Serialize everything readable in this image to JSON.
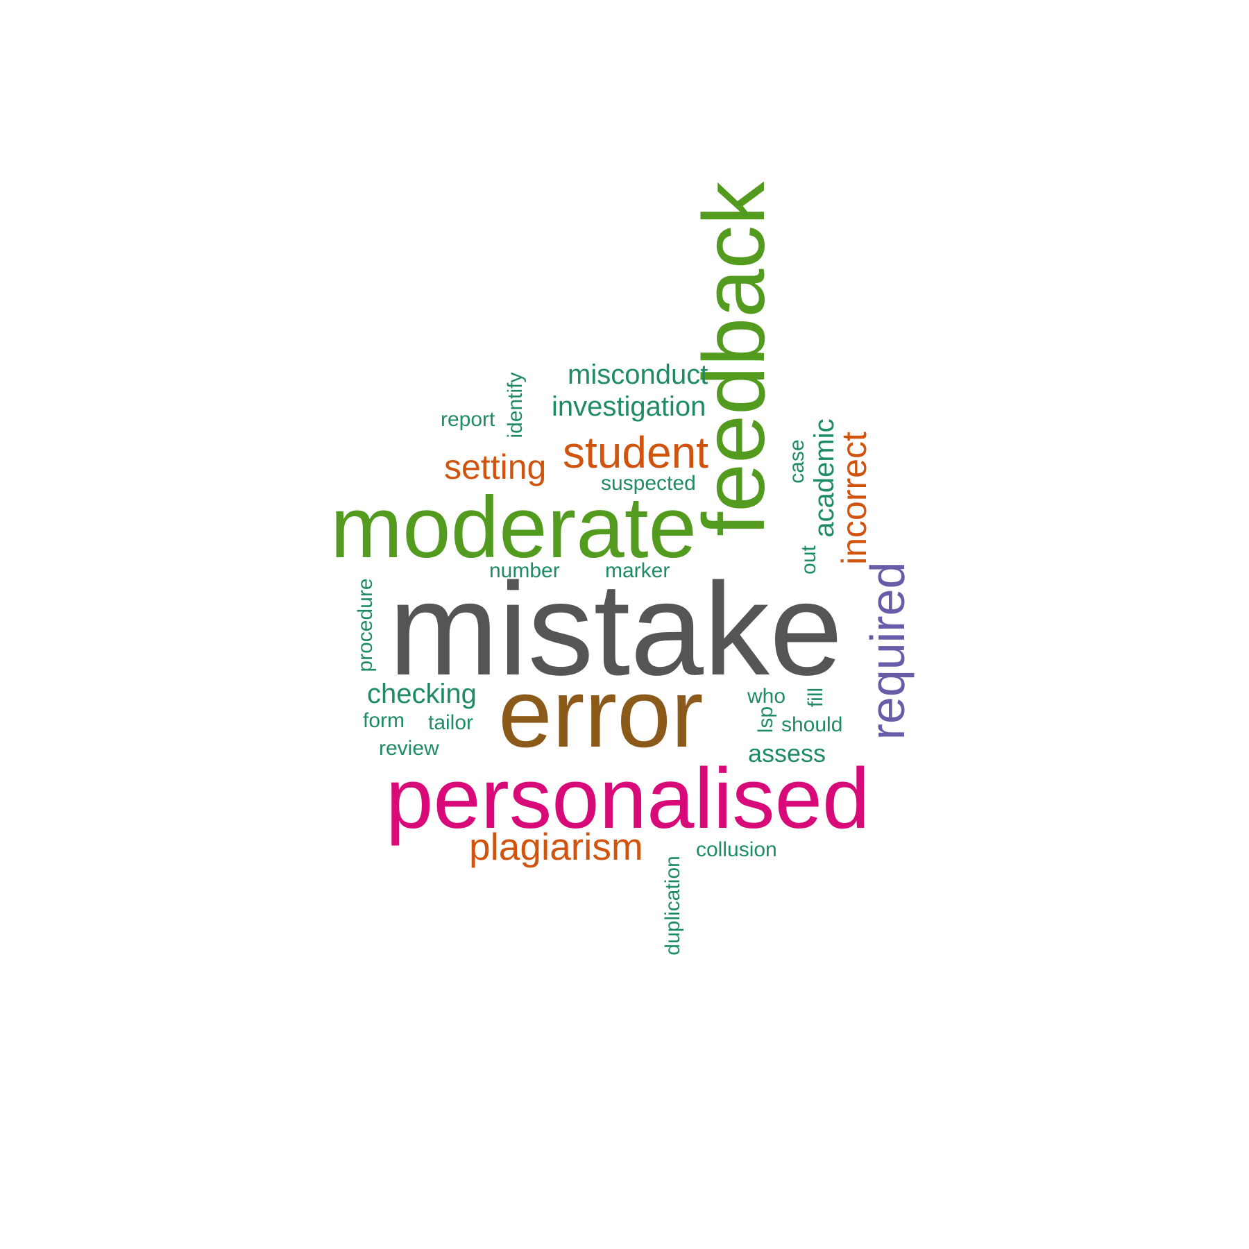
{
  "words": [
    {
      "text": "mistake",
      "color": "#555555",
      "weight": 1.0
    },
    {
      "text": "error",
      "color": "#8B5A1B",
      "weight": 0.74
    },
    {
      "text": "feedback",
      "color": "#539B1E",
      "weight": 0.66
    },
    {
      "text": "moderate",
      "color": "#539B1E",
      "weight": 0.66
    },
    {
      "text": "personalised",
      "color": "#D80A7A",
      "weight": 0.66
    },
    {
      "text": "required",
      "color": "#6A5BA8",
      "weight": 0.43
    },
    {
      "text": "student",
      "color": "#D0530E",
      "weight": 0.38
    },
    {
      "text": "plagiarism",
      "color": "#D0530E",
      "weight": 0.33
    },
    {
      "text": "incorrect",
      "color": "#D0530E",
      "weight": 0.31
    },
    {
      "text": "setting",
      "color": "#D0530E",
      "weight": 0.31
    },
    {
      "text": "misconduct",
      "color": "#1E8A66",
      "weight": 0.26
    },
    {
      "text": "investigation",
      "color": "#1E8A66",
      "weight": 0.26
    },
    {
      "text": "checking",
      "color": "#1E8A66",
      "weight": 0.26
    },
    {
      "text": "academic",
      "color": "#1E8A66",
      "weight": 0.26
    },
    {
      "text": "assess",
      "color": "#1E8A66",
      "weight": 0.22
    },
    {
      "text": "report",
      "color": "#1E8A66",
      "weight": 0.19
    },
    {
      "text": "identify",
      "color": "#1E8A66",
      "weight": 0.19
    },
    {
      "text": "suspected",
      "color": "#1E8A66",
      "weight": 0.19
    },
    {
      "text": "case",
      "color": "#1E8A66",
      "weight": 0.19
    },
    {
      "text": "number",
      "color": "#1E8A66",
      "weight": 0.19
    },
    {
      "text": "marker",
      "color": "#1E8A66",
      "weight": 0.19
    },
    {
      "text": "out",
      "color": "#1E8A66",
      "weight": 0.19
    },
    {
      "text": "procedure",
      "color": "#1E8A66",
      "weight": 0.19
    },
    {
      "text": "form",
      "color": "#1E8A66",
      "weight": 0.19
    },
    {
      "text": "tailor",
      "color": "#1E8A66",
      "weight": 0.19
    },
    {
      "text": "review",
      "color": "#1E8A66",
      "weight": 0.19
    },
    {
      "text": "who",
      "color": "#1E8A66",
      "weight": 0.19
    },
    {
      "text": "fill",
      "color": "#1E8A66",
      "weight": 0.19
    },
    {
      "text": "lsp",
      "color": "#1E8A66",
      "weight": 0.19
    },
    {
      "text": "should",
      "color": "#1E8A66",
      "weight": 0.19
    },
    {
      "text": "collusion",
      "color": "#1E8A66",
      "weight": 0.19
    },
    {
      "text": "duplication",
      "color": "#1E8A66",
      "weight": 0.19
    }
  ]
}
